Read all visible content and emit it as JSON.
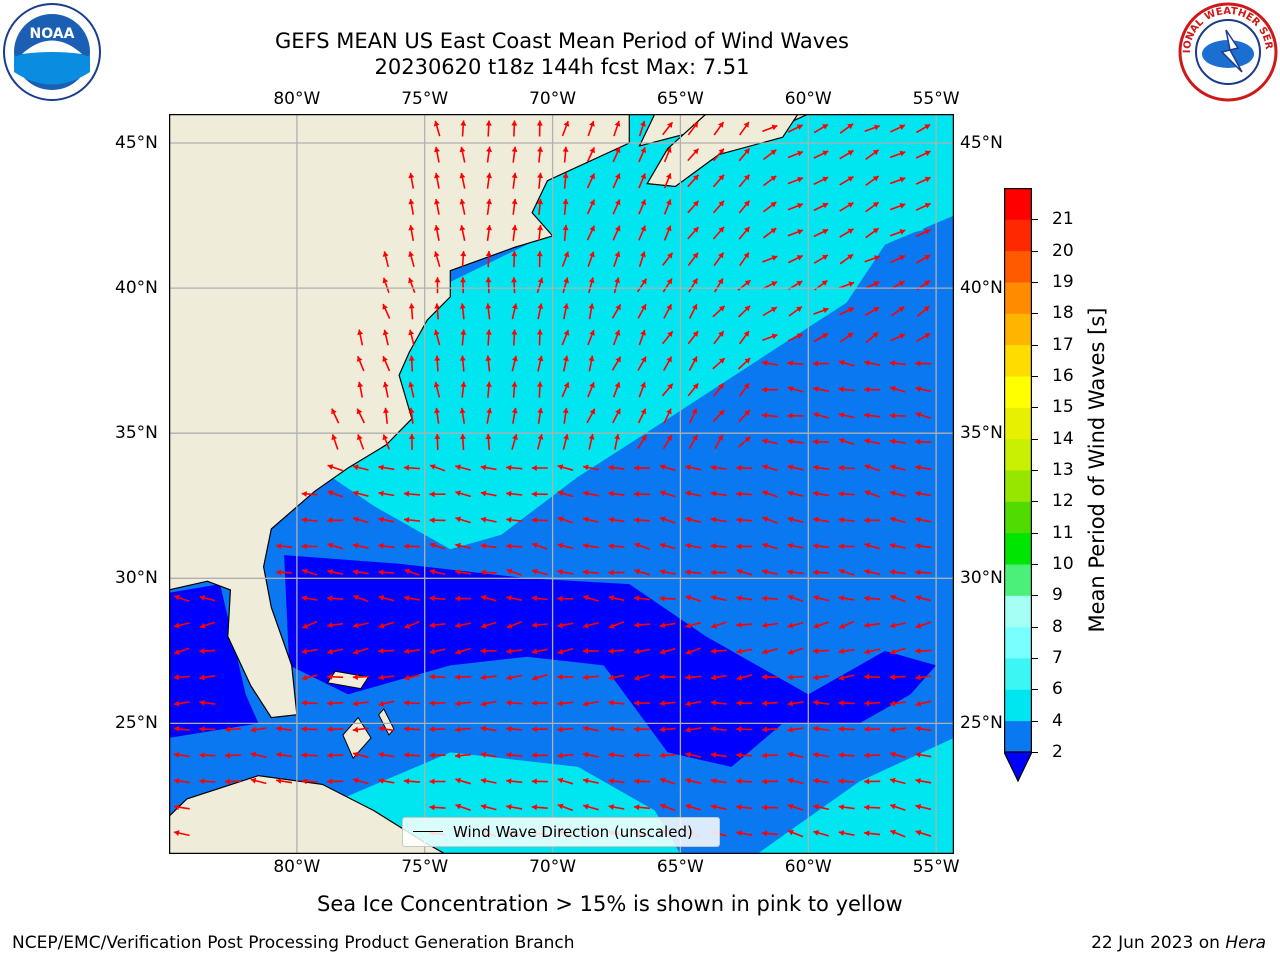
{
  "title": {
    "line1": "GEFS MEAN US East Coast Mean Period of Wind Waves",
    "line2": "20230620 t18z 144h fcst   Max: 7.51"
  },
  "logos": {
    "left_icon": "noaa-logo",
    "left_text": "NOAA",
    "right_icon": "nws-logo",
    "right_text": "NATIONAL WEATHER SERVICE"
  },
  "map": {
    "lon_labels": [
      "80°W",
      "75°W",
      "70°W",
      "65°W",
      "60°W",
      "55°W"
    ],
    "lon_values": [
      -80,
      -75,
      -70,
      -65,
      -60,
      -55
    ],
    "lat_labels": [
      "45°N",
      "40°N",
      "35°N",
      "30°N",
      "25°N"
    ],
    "lat_values": [
      45,
      40,
      35,
      30,
      25
    ],
    "extent": {
      "lon_min": -85,
      "lon_max": -54.3,
      "lat_min": 20.5,
      "lat_max": 46
    },
    "legend_label": "Wind Wave Direction (unscaled)",
    "arrow_color": "#ff0000",
    "land_color": "#efedd9",
    "gridline_color": "#b0b0b0"
  },
  "colorbar": {
    "label": "Mean Period of Wind Waves [s]",
    "ticks": [
      "2",
      "4",
      "6",
      "7",
      "8",
      "9",
      "10",
      "11",
      "12",
      "13",
      "14",
      "15",
      "16",
      "17",
      "18",
      "19",
      "20",
      "21"
    ],
    "colors": [
      "#0a78f0",
      "#00e6f0",
      "#3cf5f5",
      "#78ffff",
      "#a5fff5",
      "#4bf078",
      "#00e600",
      "#50dc00",
      "#96e600",
      "#c8f000",
      "#e6f000",
      "#ffff00",
      "#ffdc00",
      "#ffb400",
      "#ff8c00",
      "#ff5a00",
      "#ff2800",
      "#ff0000"
    ],
    "under_color": "#0000ff"
  },
  "sea_ice_note": "Sea Ice Concentration > 15% is shown in pink to yellow",
  "footer": {
    "left": "NCEP/EMC/Verification Post Processing Product Generation Branch",
    "date": "22 Jun 2023 on ",
    "host": "Hera"
  }
}
